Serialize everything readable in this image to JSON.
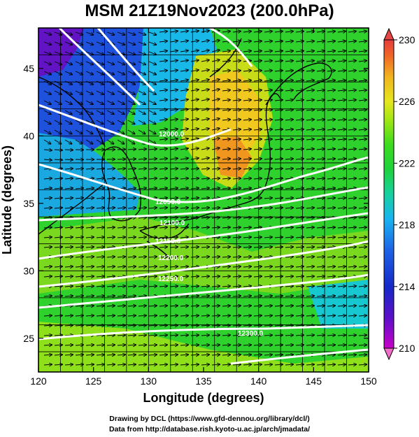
{
  "chart_data": {
    "type": "heatmap",
    "title": "MSM 21Z19Nov2023 (200.0hPa)",
    "xlabel": "Longitude (degrees)",
    "ylabel": "Latitude  (degrees)",
    "xlim": [
      120,
      150
    ],
    "ylim": [
      22.5,
      48
    ],
    "xticks": [
      120,
      125,
      130,
      135,
      140,
      145,
      150
    ],
    "yticks": [
      25,
      30,
      35,
      40,
      45
    ],
    "colorbar": {
      "range": [
        210,
        230
      ],
      "ticks": [
        210,
        214,
        218,
        222,
        226,
        230
      ],
      "direction": "vertical, right side"
    },
    "fields": {
      "shaded": "temperature (K)",
      "contours": "geopotential height (m), white lines",
      "vectors": "wind, black arrows"
    },
    "contour_labels": [
      "12000.0",
      "12050.0",
      "12100.0",
      "12150.0",
      "12200.0",
      "12250.0",
      "12300.0"
    ],
    "grid": true
  },
  "credits": {
    "line1": "Drawing by DCL (https://www.gfd-dennou.org/library/dcl/)",
    "line2": "Data from http://database.rish.kyoto-u.ac.jp/arch/jmadata/"
  }
}
